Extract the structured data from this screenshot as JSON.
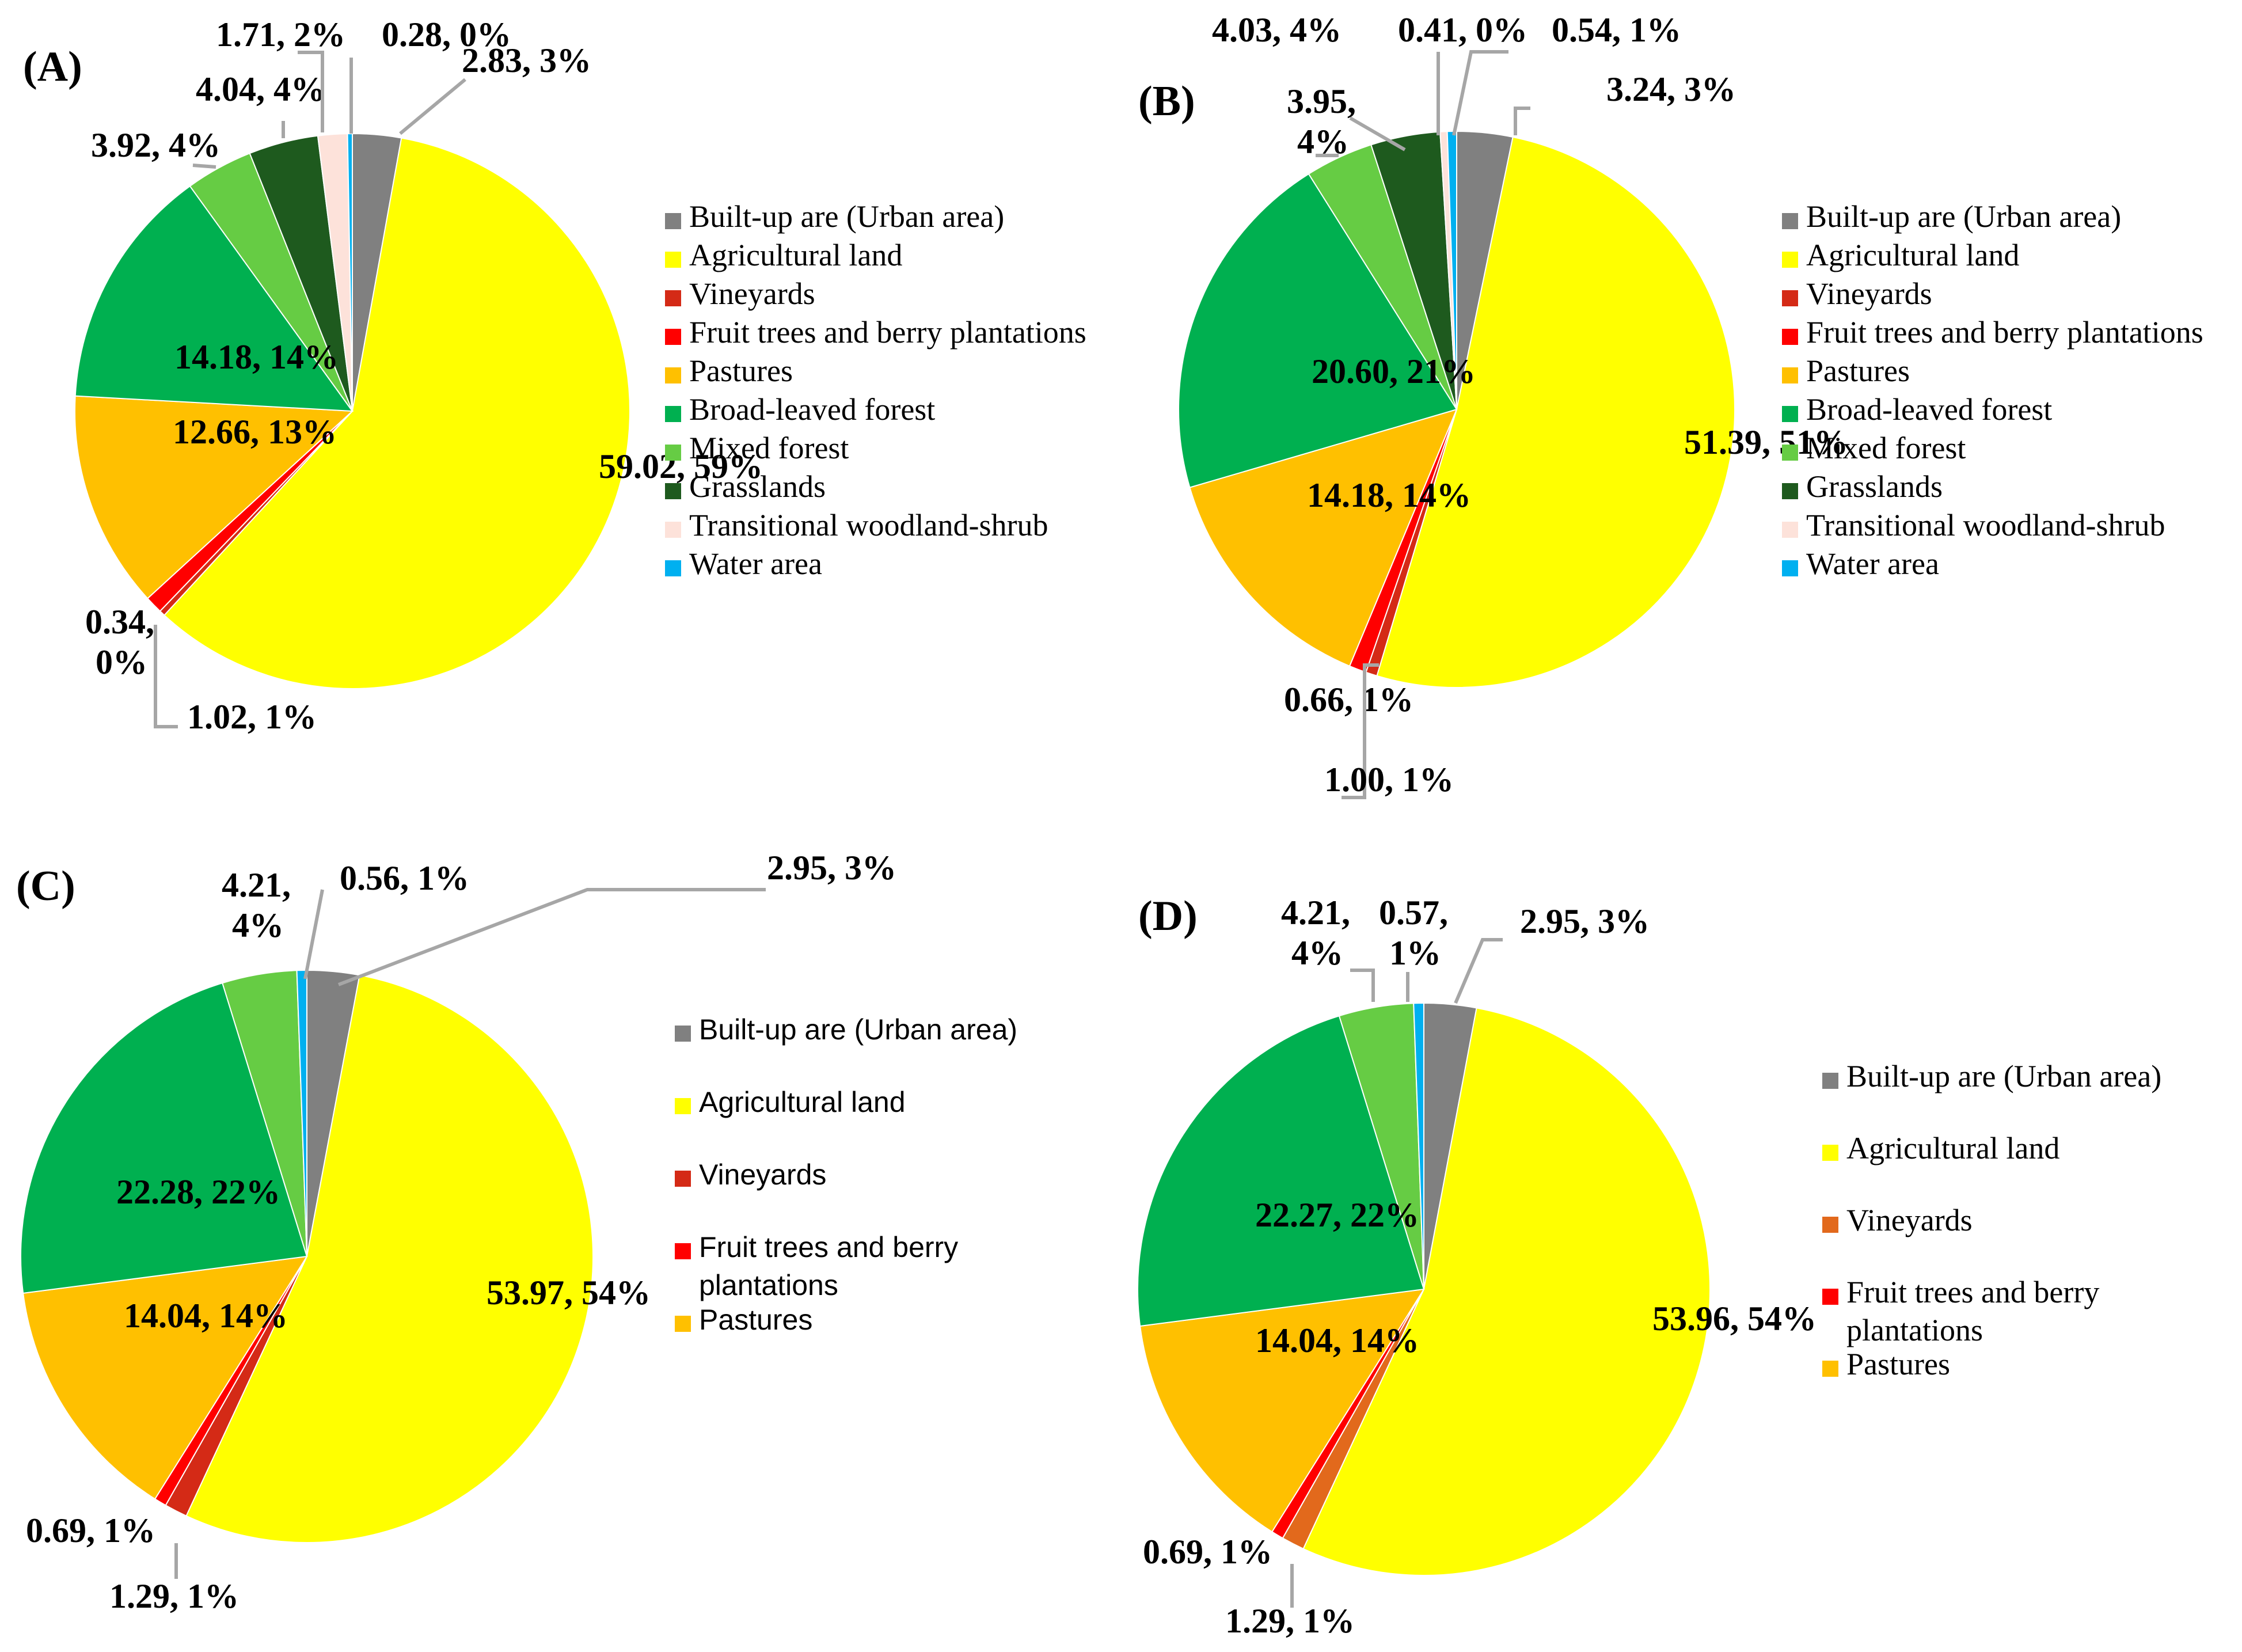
{
  "figure": {
    "colors": {
      "built_up": "#808080",
      "agricultural": "#ffff00",
      "vineyards": "#d42a16",
      "vineyards_d": "#e2691c",
      "fruit": "#ff0000",
      "pastures": "#ffc000",
      "broad_forest": "#00b050",
      "mixed_forest": "#66cc44",
      "grasslands": "#1e5a1e",
      "transitional": "#fde2da",
      "water": "#00b0f0"
    }
  },
  "chart_data": [
    {
      "type": "pie",
      "panel": "(A)",
      "legend": [
        "Built-up are (Urban area)",
        "Agricultural land",
        "Vineyards",
        "Fruit trees and berry plantations",
        "Pastures",
        "Broad-leaved forest",
        "Mixed forest",
        "Grasslands",
        "Transitional woodland-shrub",
        "Water area"
      ],
      "slices": [
        {
          "name": "Built-up are (Urban area)",
          "value": 2.83,
          "percent": "3%",
          "label": "2.83, 3%",
          "color": "built_up"
        },
        {
          "name": "Agricultural land",
          "value": 59.02,
          "percent": "59%",
          "label": "59.02, 59%",
          "color": "agricultural"
        },
        {
          "name": "Vineyards",
          "value": 0.34,
          "percent": "0%",
          "label": [
            "0.34,",
            "0%"
          ],
          "color": "vineyards"
        },
        {
          "name": "Fruit trees and berry plantations",
          "value": 1.02,
          "percent": "1%",
          "label": "1.02, 1%",
          "color": "fruit"
        },
        {
          "name": "Pastures",
          "value": 12.66,
          "percent": "13%",
          "label": "12.66, 13%",
          "color": "pastures"
        },
        {
          "name": "Broad-leaved forest",
          "value": 14.18,
          "percent": "14%",
          "label": "14.18, 14%",
          "color": "broad_forest"
        },
        {
          "name": "Mixed forest",
          "value": 3.92,
          "percent": "4%",
          "label": "3.92, 4%",
          "color": "mixed_forest"
        },
        {
          "name": "Grasslands",
          "value": 4.04,
          "percent": "4%",
          "label": "4.04, 4%",
          "color": "grasslands"
        },
        {
          "name": "Transitional woodland-shrub",
          "value": 1.71,
          "percent": "2%",
          "label": "1.71, 2%",
          "color": "transitional"
        },
        {
          "name": "Water area",
          "value": 0.28,
          "percent": "0%",
          "label": "0.28, 0%",
          "color": "water"
        }
      ]
    },
    {
      "type": "pie",
      "panel": "(B)",
      "legend": [
        "Built-up are (Urban area)",
        "Agricultural land",
        "Vineyards",
        "Fruit trees and berry plantations",
        "Pastures",
        "Broad-leaved forest",
        "Mixed forest",
        "Grasslands",
        "Transitional woodland-shrub",
        "Water area"
      ],
      "slices": [
        {
          "name": "Built-up are (Urban area)",
          "value": 3.24,
          "percent": "3%",
          "label": "3.24, 3%",
          "color": "built_up"
        },
        {
          "name": "Agricultural land",
          "value": 51.39,
          "percent": "51%",
          "label": "51.39, 51%",
          "color": "agricultural"
        },
        {
          "name": "Vineyards",
          "value": 0.66,
          "percent": "1%",
          "label": "0.66, 1%",
          "color": "vineyards"
        },
        {
          "name": "Fruit trees and berry plantations",
          "value": 1.0,
          "percent": "1%",
          "label": "1.00, 1%",
          "color": "fruit"
        },
        {
          "name": "Pastures",
          "value": 14.18,
          "percent": "14%",
          "label": "14.18, 14%",
          "color": "pastures"
        },
        {
          "name": "Broad-leaved forest",
          "value": 20.6,
          "percent": "21%",
          "label": "20.60, 21%",
          "color": "broad_forest"
        },
        {
          "name": "Mixed forest",
          "value": 3.95,
          "percent": "4%",
          "label": [
            "3.95,",
            "4%"
          ],
          "color": "mixed_forest"
        },
        {
          "name": "Grasslands",
          "value": 4.03,
          "percent": "4%",
          "label": "4.03, 4%",
          "color": "grasslands"
        },
        {
          "name": "Transitional woodland-shrub",
          "value": 0.41,
          "percent": "0%",
          "label": "0.41, 0%",
          "color": "transitional"
        },
        {
          "name": "Water area",
          "value": 0.54,
          "percent": "1%",
          "label": "0.54, 1%",
          "color": "water"
        }
      ]
    },
    {
      "type": "pie",
      "panel": "(C)",
      "legend": [
        "Built-up are (Urban area)",
        "Agricultural land",
        "Vineyards",
        "Fruit trees and berry plantations",
        "Pastures"
      ],
      "slices": [
        {
          "name": "Built-up are (Urban area)",
          "value": 2.95,
          "percent": "3%",
          "label": "2.95, 3%",
          "color": "built_up"
        },
        {
          "name": "Agricultural land",
          "value": 53.97,
          "percent": "54%",
          "label": "53.97, 54%",
          "color": "agricultural"
        },
        {
          "name": "Vineyards",
          "value": 1.29,
          "percent": "1%",
          "label": "1.29, 1%",
          "color": "vineyards"
        },
        {
          "name": "Fruit trees and berry plantations",
          "value": 0.69,
          "percent": "1%",
          "label": "0.69, 1%",
          "color": "fruit"
        },
        {
          "name": "Pastures",
          "value": 14.04,
          "percent": "14%",
          "label": "14.04, 14%",
          "color": "pastures"
        },
        {
          "name": "Broad-leaved forest",
          "value": 22.28,
          "percent": "22%",
          "label": "22.28, 22%",
          "color": "broad_forest"
        },
        {
          "name": "Mixed forest",
          "value": 4.21,
          "percent": "4%",
          "label": [
            "4.21,",
            "4%"
          ],
          "color": "mixed_forest"
        },
        {
          "name": "Water area",
          "value": 0.56,
          "percent": "1%",
          "label": "0.56, 1%",
          "color": "water"
        }
      ]
    },
    {
      "type": "pie",
      "panel": "(D)",
      "legend": [
        "Built-up are (Urban area)",
        "Agricultural land",
        "Vineyards",
        "Fruit trees and berry plantations",
        "Pastures"
      ],
      "slices": [
        {
          "name": "Built-up are (Urban area)",
          "value": 2.95,
          "percent": "3%",
          "label": "2.95, 3%",
          "color": "built_up"
        },
        {
          "name": "Agricultural land",
          "value": 53.96,
          "percent": "54%",
          "label": "53.96, 54%",
          "color": "agricultural"
        },
        {
          "name": "Vineyards",
          "value": 1.29,
          "percent": "1%",
          "label": "1.29, 1%",
          "color": "vineyards_d"
        },
        {
          "name": "Fruit trees and berry plantations",
          "value": 0.69,
          "percent": "1%",
          "label": "0.69, 1%",
          "color": "fruit"
        },
        {
          "name": "Pastures",
          "value": 14.04,
          "percent": "14%",
          "label": "14.04, 14%",
          "color": "pastures"
        },
        {
          "name": "Broad-leaved forest",
          "value": 22.27,
          "percent": "22%",
          "label": "22.27, 22%",
          "color": "broad_forest"
        },
        {
          "name": "Mixed forest",
          "value": 4.21,
          "percent": "4%",
          "label": [
            "4.21,",
            "4%"
          ],
          "color": "mixed_forest"
        },
        {
          "name": "Water area",
          "value": 0.57,
          "percent": "1%",
          "label": [
            "0.57,",
            "1%"
          ],
          "color": "water"
        }
      ]
    }
  ]
}
